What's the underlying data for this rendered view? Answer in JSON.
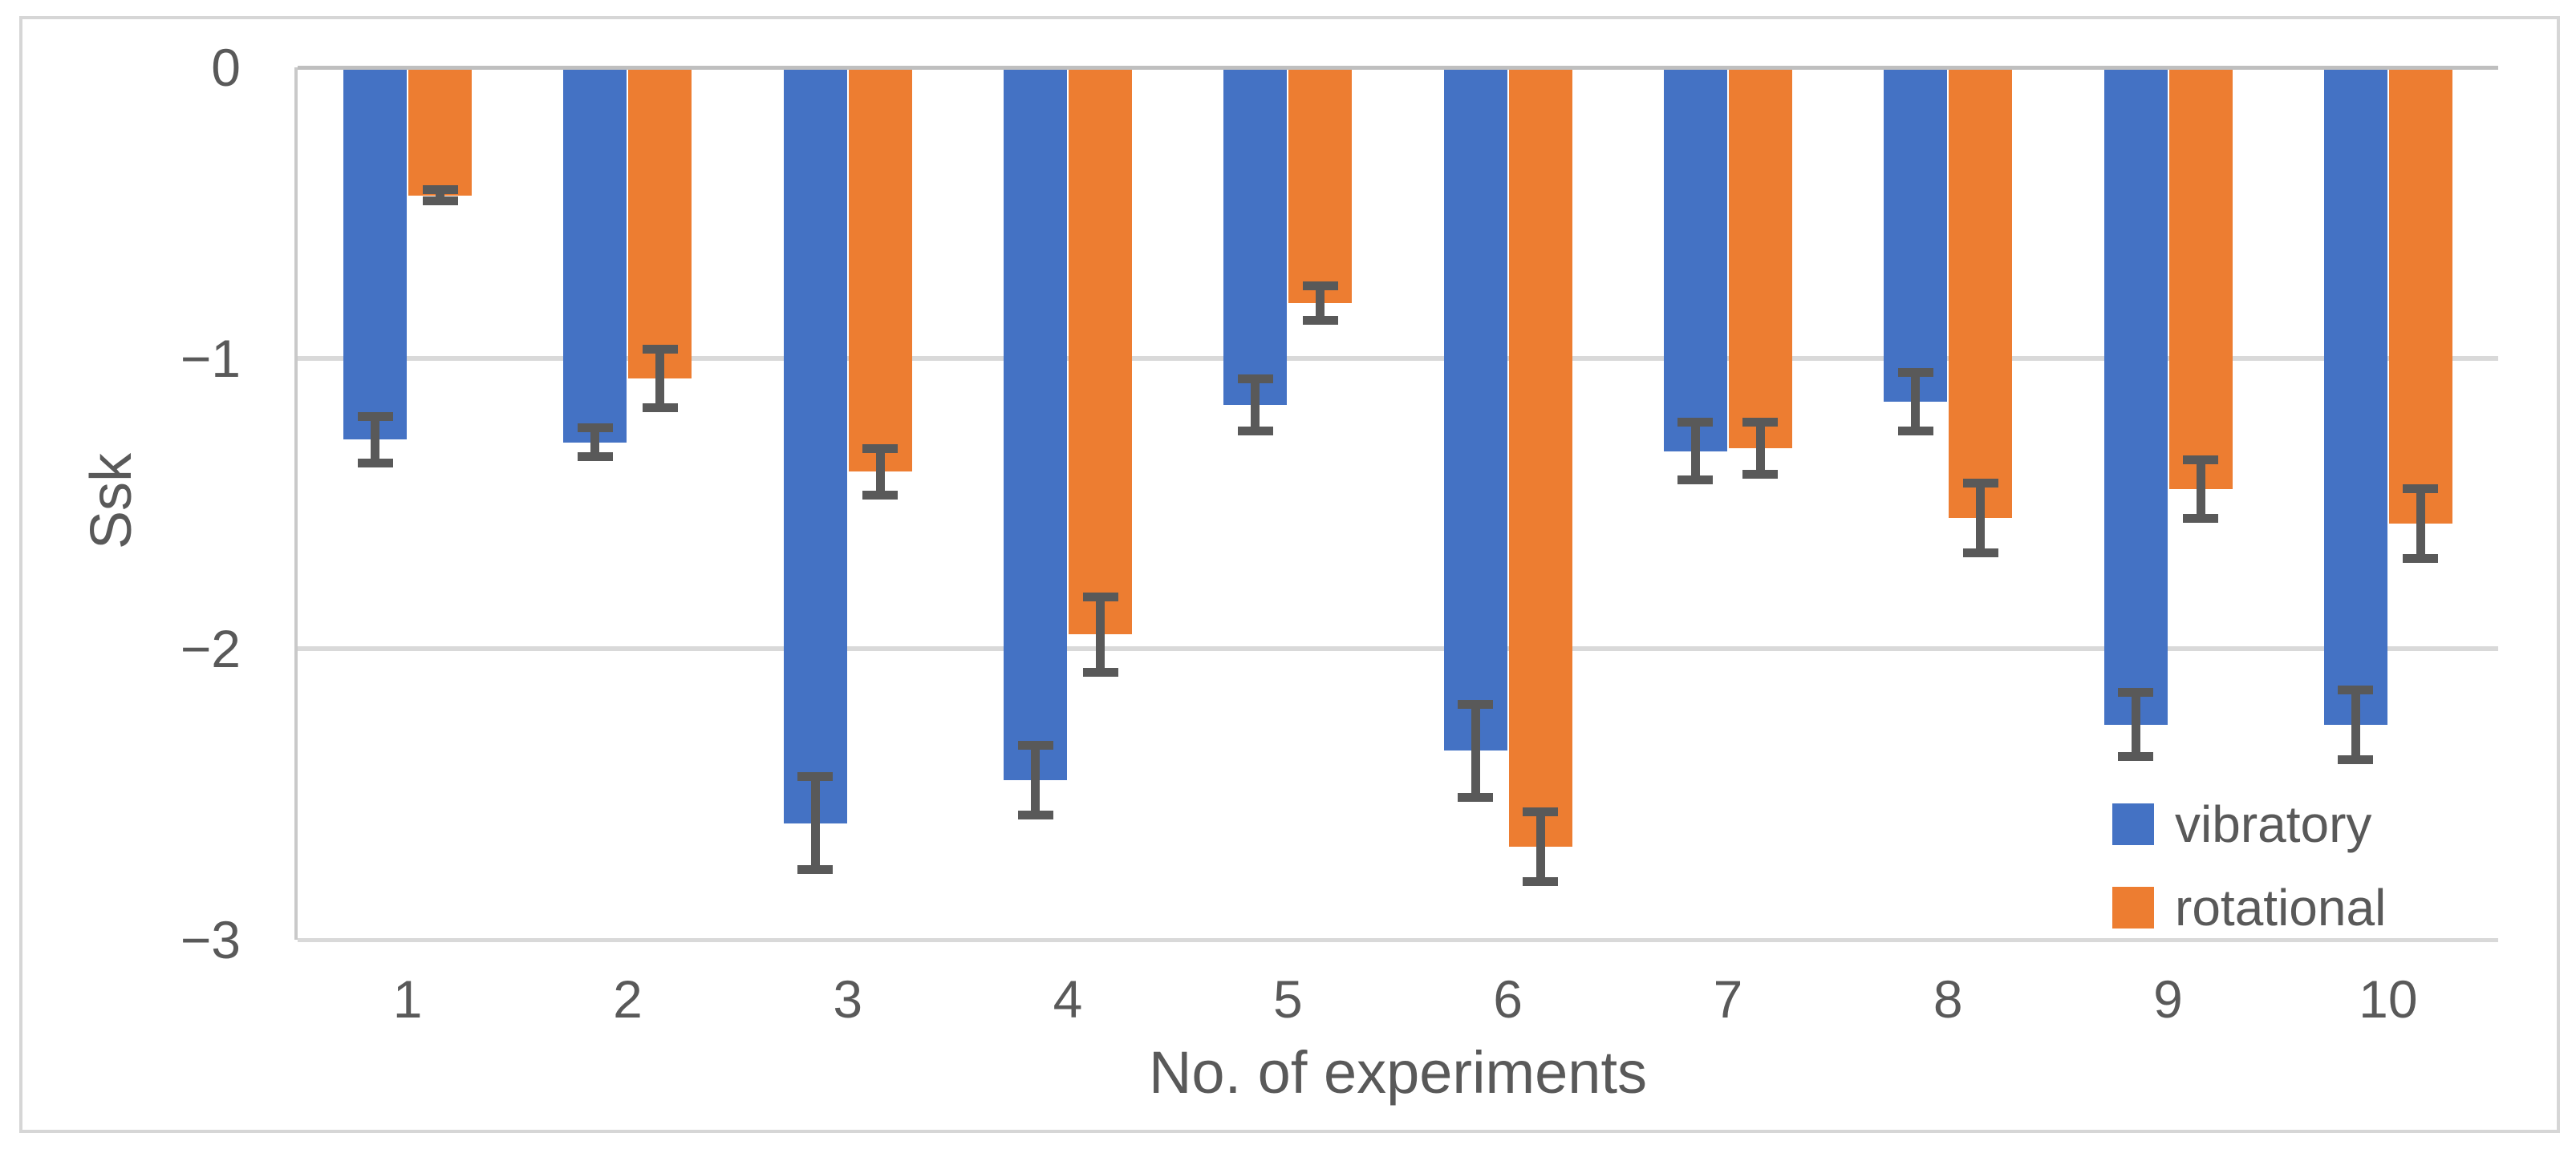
{
  "chart_data": {
    "type": "bar",
    "title": "",
    "xlabel": "No. of experiments",
    "ylabel": "Ssk",
    "categories": [
      "1",
      "2",
      "3",
      "4",
      "5",
      "6",
      "7",
      "8",
      "9",
      "10"
    ],
    "series": [
      {
        "name": "vibratory",
        "color": "#4472C4",
        "values": [
          -1.28,
          -1.29,
          -2.6,
          -2.45,
          -1.16,
          -2.35,
          -1.32,
          -1.15,
          -2.26,
          -2.26
        ],
        "errors": [
          0.08,
          0.05,
          0.16,
          0.12,
          0.09,
          0.16,
          0.1,
          0.1,
          0.11,
          0.12
        ]
      },
      {
        "name": "rotational",
        "color": "#ED7D31",
        "values": [
          -0.44,
          -1.07,
          -1.39,
          -1.95,
          -0.81,
          -2.68,
          -1.31,
          -1.55,
          -1.45,
          -1.57
        ],
        "errors": [
          0.02,
          0.1,
          0.08,
          0.13,
          0.06,
          0.12,
          0.09,
          0.12,
          0.1,
          0.12
        ]
      }
    ],
    "ylim": [
      -3,
      0
    ],
    "yticks": [
      0,
      -1,
      -2,
      -3
    ],
    "ytick_labels": [
      "0",
      "−1",
      "−2",
      "−3"
    ],
    "grid": true,
    "legend_position": "inside-bottom-right",
    "error_bar_color": "#595959",
    "axis_line_color": "#BFBFBF",
    "gridline_color": "#D9D9D9",
    "text_color": "#595959"
  }
}
